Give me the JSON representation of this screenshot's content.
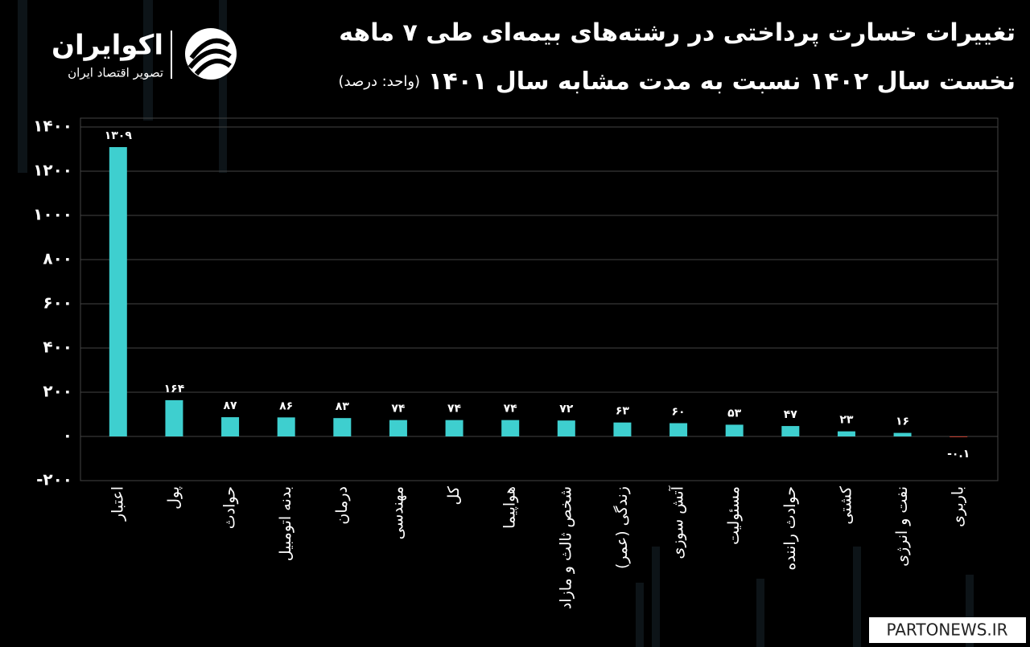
{
  "chart_data": {
    "type": "bar",
    "title": "تغییرات خسارت پرداختی در رشته‌های بیمه‌ای طی ۷ ماهه",
    "subtitle": "نخست سال ۱۴۰۲ نسبت به مدت مشابه سال ۱۴۰۱",
    "unit": "(واحد: درصد)",
    "categories": [
      "اعتبار",
      "پول",
      "حوادث",
      "بدنه اتومبیل",
      "درمان",
      "مهندسی",
      "کل",
      "هواپیما",
      "شخص ثالث و مازاد",
      "زندگی (عمر)",
      "آتش سوزی",
      "مسئولیت",
      "حوادث راننده",
      "کشتی",
      "نفت و انرژی",
      "باربری"
    ],
    "values": [
      1309,
      164,
      87,
      86,
      83,
      74,
      74,
      74,
      72,
      63,
      60,
      53,
      47,
      23,
      16,
      -0.1
    ],
    "value_labels": [
      "۱۳۰۹",
      "۱۶۴",
      "۸۷",
      "۸۶",
      "۸۳",
      "۷۴",
      "۷۴",
      "۷۴",
      "۷۲",
      "۶۳",
      "۶۰",
      "۵۳",
      "۴۷",
      "۲۳",
      "۱۶",
      "-۰.۱"
    ],
    "color": "#3ecfcf",
    "ylim": [
      -200,
      1440
    ],
    "yticks": [
      {
        "value": -200,
        "label": "-۲۰۰"
      },
      {
        "value": 0,
        "label": "۰"
      },
      {
        "value": 200,
        "label": "۲۰۰"
      },
      {
        "value": 400,
        "label": "۴۰۰"
      },
      {
        "value": 600,
        "label": "۶۰۰"
      },
      {
        "value": 800,
        "label": "۸۰۰"
      },
      {
        "value": 1000,
        "label": "۱۰۰۰"
      },
      {
        "value": 1200,
        "label": "۱۲۰۰"
      },
      {
        "value": 1400,
        "label": "۱۴۰۰"
      }
    ],
    "grid": true
  },
  "brand": {
    "name": "اکوایران",
    "tagline": "تصویر اقتصاد ایران"
  },
  "watermark": "PARTONEWS.IR"
}
